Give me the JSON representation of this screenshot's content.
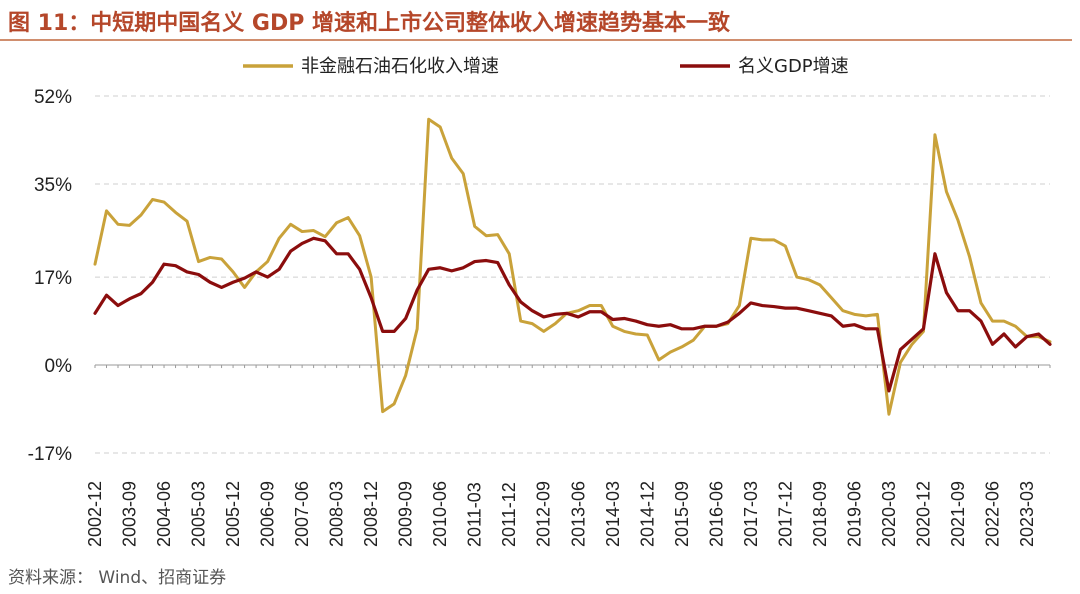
{
  "figure": {
    "title": "图 11：中短期中国名义 GDP 增速和上市公司整体收入增速趋势基本一致",
    "source": "资料来源： Wind、招商证券",
    "title_color": "#b5472a",
    "rule_color": "#c0683f"
  },
  "chart_data": {
    "type": "line",
    "ylim": [
      -17,
      52
    ],
    "yticks": [
      -17,
      0,
      17,
      35,
      52
    ],
    "ytick_labels": [
      "-17%",
      "0%",
      "17%",
      "35%",
      "52%"
    ],
    "grid": true,
    "legend_position": "top",
    "x": [
      "2002-12",
      "2003-03",
      "2003-06",
      "2003-09",
      "2003-12",
      "2004-03",
      "2004-06",
      "2004-09",
      "2004-12",
      "2005-03",
      "2005-06",
      "2005-09",
      "2005-12",
      "2006-03",
      "2006-06",
      "2006-09",
      "2006-12",
      "2007-03",
      "2007-06",
      "2007-09",
      "2007-12",
      "2008-03",
      "2008-06",
      "2008-09",
      "2008-12",
      "2009-03",
      "2009-06",
      "2009-09",
      "2009-12",
      "2010-03",
      "2010-06",
      "2010-09",
      "2010-12",
      "2011-03",
      "2011-06",
      "2011-09",
      "2011-12",
      "2012-03",
      "2012-06",
      "2012-09",
      "2012-12",
      "2013-03",
      "2013-06",
      "2013-09",
      "2013-12",
      "2014-03",
      "2014-06",
      "2014-09",
      "2014-12",
      "2015-03",
      "2015-06",
      "2015-09",
      "2015-12",
      "2016-03",
      "2016-06",
      "2016-09",
      "2016-12",
      "2017-03",
      "2017-06",
      "2017-09",
      "2017-12",
      "2018-03",
      "2018-06",
      "2018-09",
      "2018-12",
      "2019-03",
      "2019-06",
      "2019-09",
      "2019-12",
      "2020-03",
      "2020-06",
      "2020-09",
      "2020-12",
      "2021-03",
      "2021-06",
      "2021-09",
      "2021-12",
      "2022-03",
      "2022-06",
      "2022-09",
      "2022-12",
      "2023-03",
      "2023-06",
      "2023-09"
    ],
    "xtick_labels": [
      "2002-12",
      "2003-09",
      "2004-06",
      "2005-03",
      "2005-12",
      "2006-09",
      "2007-06",
      "2008-03",
      "2008-12",
      "2009-09",
      "2010-06",
      "2011-03",
      "2011-12",
      "2012-09",
      "2013-06",
      "2014-03",
      "2014-12",
      "2015-09",
      "2016-06",
      "2017-03",
      "2017-12",
      "2018-09",
      "2019-06",
      "2020-03",
      "2020-12",
      "2021-09",
      "2022-06",
      "2023-03"
    ],
    "series": [
      {
        "name": "非金融石油石化收入增速",
        "color": "#c9a23a",
        "values": [
          19.5,
          29.8,
          27.2,
          27.0,
          29.0,
          32.0,
          31.5,
          29.5,
          27.8,
          20.0,
          20.8,
          20.5,
          18.0,
          15.0,
          18.0,
          20.0,
          24.5,
          27.2,
          25.8,
          26.0,
          24.8,
          27.5,
          28.5,
          25.0,
          17.0,
          -9.0,
          -7.5,
          -2.0,
          7.0,
          47.5,
          46.0,
          40.0,
          37.0,
          26.8,
          25.0,
          25.2,
          21.5,
          8.5,
          8.0,
          6.5,
          8.0,
          10.0,
          10.5,
          11.5,
          11.5,
          7.5,
          6.5,
          6.0,
          5.8,
          1.0,
          2.5,
          3.5,
          4.8,
          7.5,
          7.5,
          8.0,
          11.5,
          24.5,
          24.2,
          24.2,
          23.0,
          17.0,
          16.5,
          15.5,
          13.0,
          10.5,
          9.8,
          9.5,
          9.8,
          -9.5,
          0.5,
          4.0,
          6.5,
          44.5,
          33.5,
          28.0,
          21.0,
          12.0,
          8.5,
          8.5,
          7.5,
          5.5,
          5.5,
          4.5
        ]
      },
      {
        "name": "名义GDP增速",
        "color": "#8b0d0d",
        "values": [
          10.0,
          13.5,
          11.5,
          12.8,
          13.8,
          16.0,
          19.5,
          19.2,
          18.0,
          17.5,
          16.0,
          15.0,
          16.0,
          16.8,
          18.0,
          17.0,
          18.5,
          22.0,
          23.5,
          24.5,
          24.0,
          21.5,
          21.5,
          18.5,
          13.0,
          6.5,
          6.5,
          9.0,
          14.5,
          18.5,
          18.8,
          18.2,
          18.8,
          20.0,
          20.2,
          19.8,
          15.5,
          12.2,
          10.5,
          9.3,
          9.8,
          10.0,
          9.3,
          10.3,
          10.3,
          8.8,
          9.0,
          8.5,
          7.8,
          7.5,
          7.8,
          7.0,
          7.0,
          7.5,
          7.5,
          8.3,
          10.0,
          12.0,
          11.5,
          11.3,
          11.0,
          11.0,
          10.5,
          10.0,
          9.5,
          7.5,
          7.8,
          7.0,
          7.0,
          -5.0,
          3.0,
          5.0,
          7.0,
          21.5,
          14.0,
          10.5,
          10.5,
          8.5,
          4.0,
          6.0,
          3.5,
          5.5,
          6.0,
          4.0
        ]
      }
    ]
  }
}
